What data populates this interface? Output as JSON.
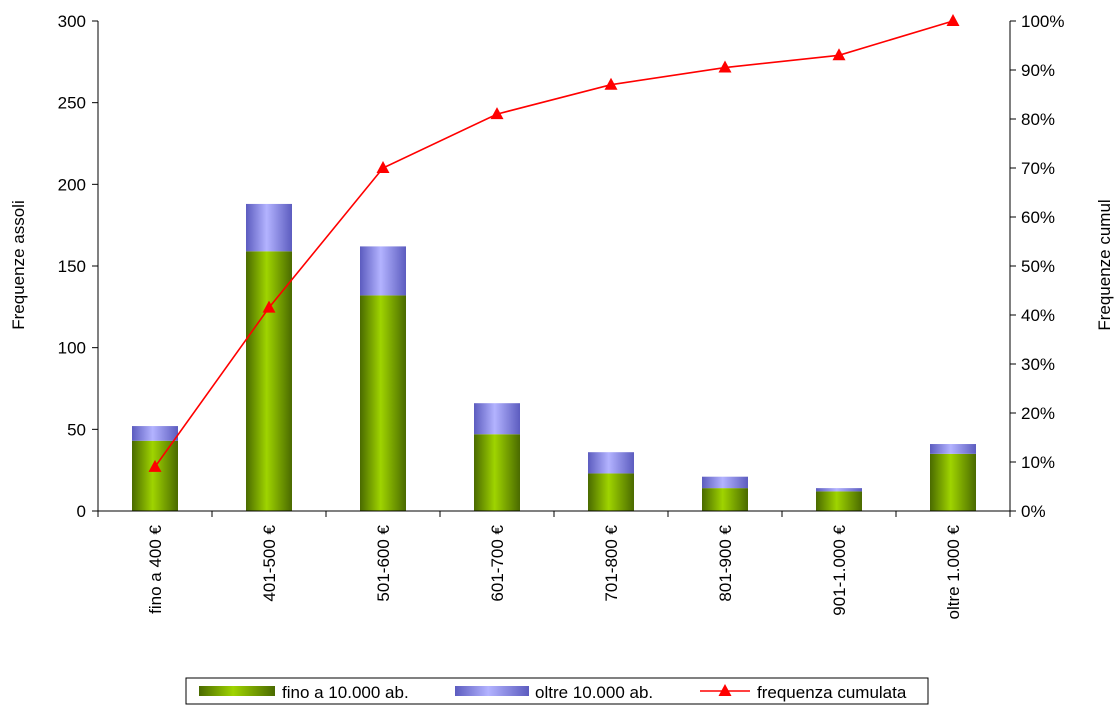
{
  "chart_data": {
    "type": "bar",
    "stacked": true,
    "title": "",
    "categories": [
      "fino a 400 €",
      "401-500 €",
      "501-600 €",
      "601-700 €",
      "701-800 €",
      "801-900 €",
      "901-1.000 €",
      "oltre 1.000 €"
    ],
    "series": [
      {
        "name": "fino a 10.000 ab.",
        "type": "bar",
        "axis": "left",
        "color": "#7fb200",
        "values": [
          43,
          159,
          132,
          47,
          23,
          14,
          12,
          35
        ]
      },
      {
        "name": "oltre 10.000 ab.",
        "type": "bar",
        "axis": "left",
        "color": "#9999ff",
        "values": [
          9,
          29,
          30,
          19,
          13,
          7,
          2,
          6
        ]
      },
      {
        "name": "frequenza cumulata",
        "type": "line",
        "axis": "right",
        "color": "#ff0000",
        "marker": "triangle",
        "values": [
          0.09,
          0.415,
          0.7,
          0.81,
          0.87,
          0.905,
          0.93,
          1.0
        ]
      }
    ],
    "ylabel": "Frequenze assoli",
    "y2label": "Frequenze cumul",
    "ylim": [
      0,
      300
    ],
    "yticks": [
      "0",
      "50",
      "100",
      "150",
      "200",
      "250",
      "300"
    ],
    "y2lim": [
      0,
      1
    ],
    "y2ticks": [
      "0%",
      "10%",
      "20%",
      "30%",
      "40%",
      "50%",
      "60%",
      "70%",
      "80%",
      "90%",
      "100%"
    ],
    "grid": false,
    "legend_position": "bottom"
  }
}
